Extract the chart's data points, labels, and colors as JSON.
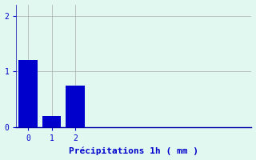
{
  "categories": [
    0,
    1,
    2
  ],
  "values": [
    1.2,
    0.2,
    0.75
  ],
  "bar_color": "#0000cc",
  "bar_width": 0.8,
  "background_color": "#e0f8f0",
  "xlabel": "Précipitations 1h ( mm )",
  "xlabel_color": "#0000cc",
  "xlabel_fontsize": 8,
  "tick_color": "#0000cc",
  "tick_fontsize": 7,
  "ylim": [
    0,
    2.2
  ],
  "yticks": [
    0,
    1,
    2
  ],
  "xlim": [
    -0.5,
    9.5
  ],
  "grid_color": "#aaaaaa",
  "grid_linewidth": 0.5,
  "axis_color": "#0000aa",
  "spine_bottom_color": "#0000aa"
}
